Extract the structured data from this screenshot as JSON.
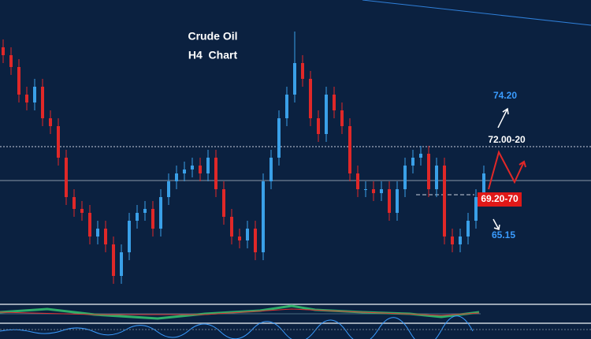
{
  "chart_data": {
    "type": "candlestick",
    "title": "Crude Oil",
    "subtitle": "H4  Chart",
    "open": [
      77,
      76.5,
      75.75,
      74,
      73.5,
      74.5,
      72.5,
      72,
      70,
      67.5,
      66.75,
      66.5,
      65,
      65.5,
      64.5,
      62.5,
      64,
      66,
      66.5,
      66.75,
      65.5,
      67.5,
      68.5,
      69,
      69.25,
      69.5,
      69,
      70,
      68,
      66.25,
      65,
      64.75,
      65.5,
      64,
      68.5,
      70,
      72.5,
      74,
      76,
      75,
      72.5,
      71.5,
      74,
      73,
      72,
      69,
      68,
      68,
      67.75,
      68,
      66.5,
      68,
      69.5,
      70,
      70.25,
      68,
      69.5,
      65,
      64.5,
      65,
      66,
      67.5
    ],
    "high": [
      77.5,
      77,
      76.25,
      74.5,
      75,
      75,
      73,
      72.5,
      70.5,
      68,
      67.25,
      67,
      66,
      66,
      65,
      64.5,
      66.5,
      67,
      67.25,
      67.25,
      68,
      69,
      69.5,
      69.75,
      70,
      70,
      70.5,
      70.5,
      68.5,
      66.75,
      65.5,
      66,
      66,
      69,
      70.5,
      73,
      74.5,
      78,
      76.5,
      75.5,
      73,
      74.5,
      74.5,
      73.5,
      72.5,
      69.5,
      68.5,
      68.5,
      68.5,
      68.5,
      68.5,
      70,
      70.5,
      70.75,
      70.75,
      70,
      70,
      65.5,
      65.5,
      66.5,
      68,
      69.5
    ],
    "low": [
      76,
      75.25,
      73.5,
      73,
      73,
      72,
      71.5,
      69.5,
      67,
      66.25,
      66,
      64.5,
      64.5,
      64,
      62,
      62,
      63.5,
      65.5,
      66,
      65,
      65,
      67,
      68,
      68.5,
      68.75,
      68.5,
      68.5,
      67.5,
      65.75,
      64.5,
      64.25,
      64.25,
      63.5,
      63.5,
      68,
      69.5,
      72,
      73.5,
      74.5,
      72,
      71,
      71,
      72.5,
      71.5,
      68.5,
      67.5,
      67.5,
      67.25,
      67.25,
      66,
      66,
      67.5,
      69,
      69.5,
      67.5,
      67.5,
      64.5,
      64,
      64,
      64.5,
      65.5,
      67
    ],
    "close": [
      76.5,
      75.75,
      74,
      73.5,
      74.5,
      72.5,
      72,
      70,
      67.5,
      66.75,
      66.5,
      65,
      65.5,
      64.5,
      62.5,
      64,
      66,
      66.5,
      66.75,
      65.5,
      67.5,
      68.5,
      69,
      69.25,
      69.5,
      69,
      70,
      68,
      66.25,
      65,
      64.75,
      65.5,
      64,
      68.5,
      70,
      72.5,
      74,
      76,
      75,
      72.5,
      71.5,
      74,
      73,
      72,
      69,
      68,
      68,
      67.75,
      68,
      66.5,
      68,
      69.5,
      70,
      70.25,
      68,
      69.5,
      65,
      64.5,
      65,
      66,
      67.5,
      69
    ],
    "ylim": [
      61,
      80
    ],
    "up_color": "#3aa0e8",
    "down_color": "#e02828",
    "annotations": [
      "74.20",
      "72.00-20",
      "69.20-70",
      "65.15"
    ]
  }
}
